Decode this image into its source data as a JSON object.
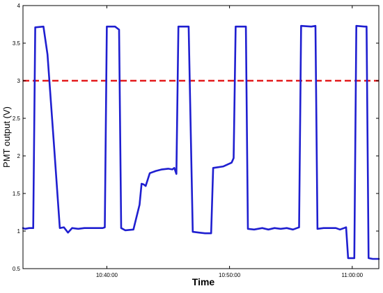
{
  "chart_data": {
    "type": "line",
    "title": "",
    "xlabel": "Time",
    "ylabel": "PMT output (V)",
    "xlim": [
      "10:33:10",
      "11:02:10"
    ],
    "ylim": [
      0.5,
      4
    ],
    "grid": false,
    "legend": "none",
    "xticks": [
      {
        "value": "10:40:00",
        "label": "10:40:00"
      },
      {
        "value": "10:50:00",
        "label": "10:50:00"
      },
      {
        "value": "11:00:00",
        "label": "11:00:00"
      }
    ],
    "yticks": [
      {
        "value": 0.5,
        "label": "0.5"
      },
      {
        "value": 1,
        "label": "1"
      },
      {
        "value": 1.5,
        "label": "1.5"
      },
      {
        "value": 2,
        "label": "2"
      },
      {
        "value": 2.5,
        "label": "2.5"
      },
      {
        "value": 3,
        "label": "3"
      },
      {
        "value": 3.5,
        "label": "3.5"
      },
      {
        "value": 4,
        "label": "4"
      }
    ],
    "reference_lines": [
      {
        "orientation": "horizontal",
        "y": 3,
        "color": "#e31a1c",
        "style": "dashed"
      }
    ],
    "series": [
      {
        "color": "#1f1fd0",
        "points": [
          [
            "10:33:10",
            1.04
          ],
          [
            "10:33:20",
            1.03
          ],
          [
            "10:33:40",
            1.04
          ],
          [
            "10:34:00",
            1.04
          ],
          [
            "10:34:10",
            3.71
          ],
          [
            "10:34:50",
            3.72
          ],
          [
            "10:35:10",
            3.35
          ],
          [
            "10:35:40",
            2.2
          ],
          [
            "10:36:10",
            1.04
          ],
          [
            "10:36:30",
            1.05
          ],
          [
            "10:36:50",
            0.98
          ],
          [
            "10:37:10",
            1.04
          ],
          [
            "10:37:40",
            1.03
          ],
          [
            "10:38:10",
            1.04
          ],
          [
            "10:38:40",
            1.04
          ],
          [
            "10:39:10",
            1.04
          ],
          [
            "10:39:40",
            1.04
          ],
          [
            "10:39:50",
            1.05
          ],
          [
            "10:40:00",
            3.72
          ],
          [
            "10:40:40",
            3.72
          ],
          [
            "10:41:00",
            3.68
          ],
          [
            "10:41:10",
            1.04
          ],
          [
            "10:41:30",
            1.01
          ],
          [
            "10:42:10",
            1.02
          ],
          [
            "10:42:40",
            1.35
          ],
          [
            "10:42:50",
            1.63
          ],
          [
            "10:43:00",
            1.62
          ],
          [
            "10:43:10",
            1.6
          ],
          [
            "10:43:30",
            1.77
          ],
          [
            "10:44:00",
            1.8
          ],
          [
            "10:44:30",
            1.82
          ],
          [
            "10:45:00",
            1.83
          ],
          [
            "10:45:20",
            1.82
          ],
          [
            "10:45:30",
            1.84
          ],
          [
            "10:45:40",
            1.76
          ],
          [
            "10:45:50",
            3.72
          ],
          [
            "10:46:40",
            3.72
          ],
          [
            "10:47:00",
            0.99
          ],
          [
            "10:47:30",
            0.98
          ],
          [
            "10:48:00",
            0.97
          ],
          [
            "10:48:30",
            0.97
          ],
          [
            "10:48:40",
            1.84
          ],
          [
            "10:49:30",
            1.86
          ],
          [
            "10:50:10",
            1.91
          ],
          [
            "10:50:20",
            1.97
          ],
          [
            "10:50:30",
            3.72
          ],
          [
            "10:51:20",
            3.72
          ],
          [
            "10:51:30",
            1.03
          ],
          [
            "10:52:00",
            1.02
          ],
          [
            "10:52:40",
            1.04
          ],
          [
            "10:53:10",
            1.02
          ],
          [
            "10:53:40",
            1.04
          ],
          [
            "10:54:10",
            1.03
          ],
          [
            "10:54:40",
            1.04
          ],
          [
            "10:55:10",
            1.02
          ],
          [
            "10:55:30",
            1.04
          ],
          [
            "10:55:40",
            1.05
          ],
          [
            "10:55:50",
            3.73
          ],
          [
            "10:56:40",
            3.72
          ],
          [
            "10:57:00",
            3.73
          ],
          [
            "10:57:10",
            1.03
          ],
          [
            "10:57:40",
            1.04
          ],
          [
            "10:58:10",
            1.04
          ],
          [
            "10:58:40",
            1.04
          ],
          [
            "10:59:00",
            1.02
          ],
          [
            "10:59:20",
            1.04
          ],
          [
            "10:59:30",
            1.05
          ],
          [
            "10:59:40",
            0.64
          ],
          [
            "10:59:50",
            0.64
          ],
          [
            "11:00:10",
            0.64
          ],
          [
            "11:00:20",
            3.73
          ],
          [
            "11:01:00",
            3.72
          ],
          [
            "11:01:10",
            3.72
          ],
          [
            "11:01:20",
            0.64
          ],
          [
            "11:01:40",
            0.63
          ],
          [
            "11:02:10",
            0.63
          ]
        ]
      }
    ]
  }
}
